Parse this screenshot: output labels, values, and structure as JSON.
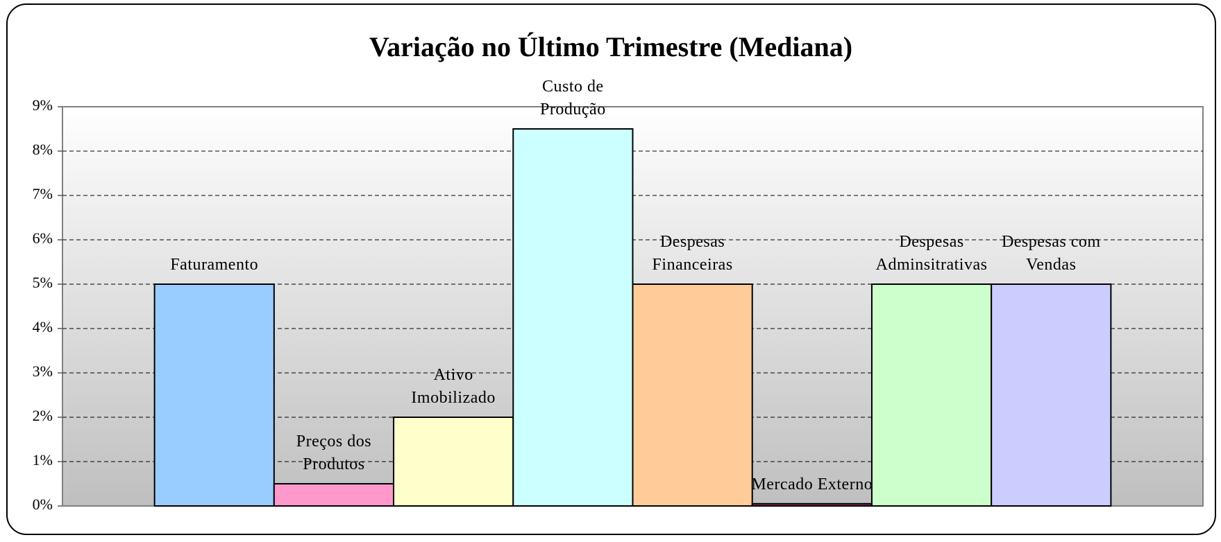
{
  "chart_data": {
    "type": "bar",
    "title": "Variação no Último Trimestre (Mediana)",
    "categories": [
      "Faturamento",
      "Preços dos Produtos",
      "Ativo Imobilizado",
      "Custo de Produção",
      "Despesas Financeiras",
      "Mercado Externo",
      "Despesas Adminsitrativas",
      "Despesas com Vendas"
    ],
    "values": [
      5,
      0.5,
      2,
      8.5,
      5,
      0.05,
      5,
      5
    ],
    "colors": [
      "#99ccff",
      "#ff99cc",
      "#ffffcc",
      "#ccffff",
      "#ffcc99",
      "#993366",
      "#ccffcc",
      "#ccccff"
    ],
    "ylim": [
      0,
      9
    ],
    "yticks": [
      {
        "value": 0,
        "label": "0%"
      },
      {
        "value": 1,
        "label": "1%"
      },
      {
        "value": 2,
        "label": "2%"
      },
      {
        "value": 3,
        "label": "3%"
      },
      {
        "value": 4,
        "label": "4%"
      },
      {
        "value": 5,
        "label": "5%"
      },
      {
        "value": 6,
        "label": "6%"
      },
      {
        "value": 7,
        "label": "7%"
      },
      {
        "value": 8,
        "label": "8%"
      },
      {
        "value": 9,
        "label": "9%"
      }
    ],
    "grid": true
  }
}
